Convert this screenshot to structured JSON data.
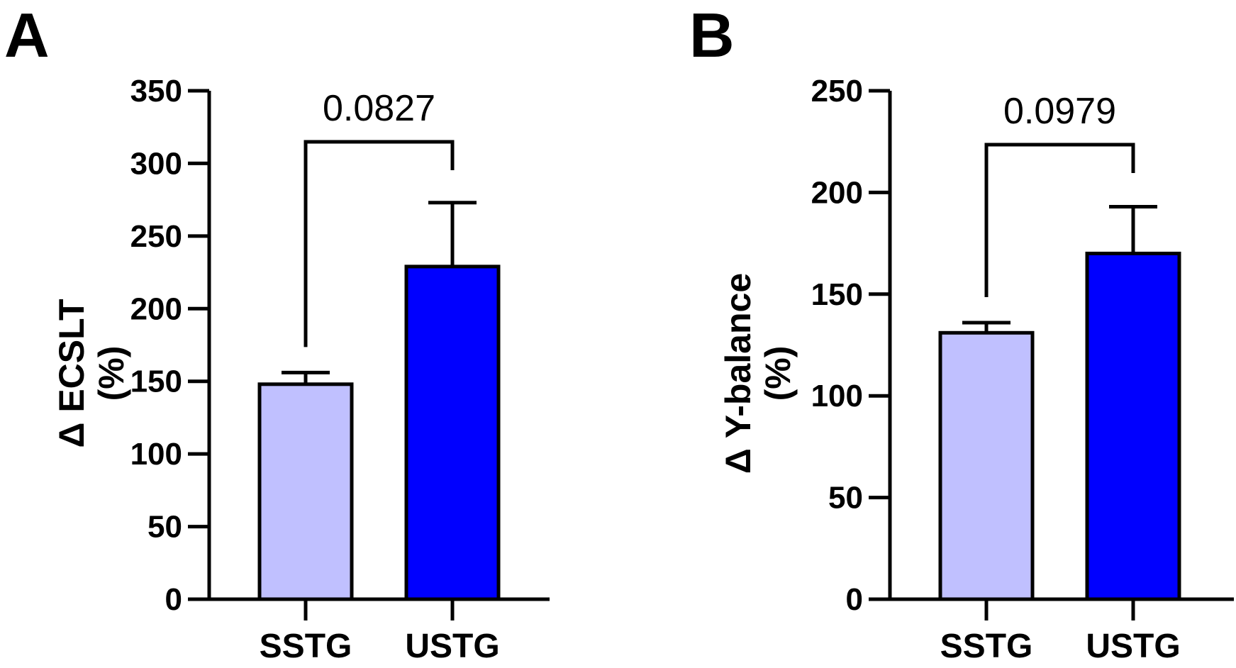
{
  "chart_data": [
    {
      "panel": "A",
      "type": "bar",
      "categories": [
        "SSTG",
        "USTG"
      ],
      "values": [
        148,
        229
      ],
      "error_upper": [
        156,
        273
      ],
      "colors": [
        "#c0c0ff",
        "#0000ff"
      ],
      "ylabel_lines": [
        "Δ ECSLT",
        "(%)"
      ],
      "ylim": [
        0,
        350
      ],
      "yticks": [
        0,
        50,
        100,
        150,
        200,
        250,
        300,
        350
      ],
      "comparison": {
        "label": "0.0827",
        "from": 0,
        "to": 1
      }
    },
    {
      "panel": "B",
      "type": "bar",
      "categories": [
        "SSTG",
        "USTG"
      ],
      "values": [
        131,
        170
      ],
      "error_upper": [
        136,
        193
      ],
      "colors": [
        "#c0c0ff",
        "#0000ff"
      ],
      "ylabel_lines": [
        "Δ Y-balance",
        "(%)"
      ],
      "ylim": [
        0,
        250
      ],
      "yticks": [
        0,
        50,
        100,
        150,
        200,
        250
      ],
      "comparison": {
        "label": "0.0979",
        "from": 0,
        "to": 1
      }
    }
  ]
}
